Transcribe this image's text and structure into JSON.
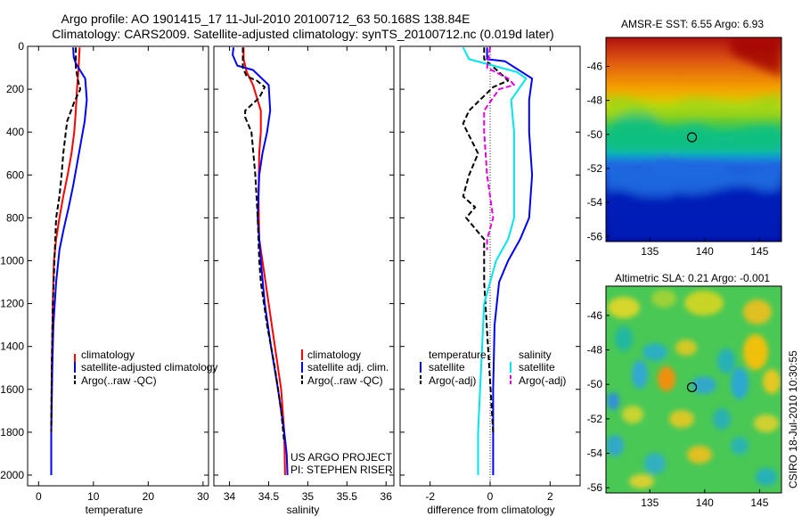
{
  "figure": {
    "title_line1": "Argo profile: AO 1901415_17 11-Jul-2010 20100712_63 50.168S 138.84E",
    "title_line2": "Climatology: CARS2009. Satellite-adjusted climatology: synTS_20100712.nc (0.019d later)",
    "project_line1": "US ARGO PROJECT",
    "project_line2": "PI: STEPHEN RISER",
    "footer": "CSIRO 18-Jul-2010 10:30:55"
  },
  "colors": {
    "climatology": "#ff0000",
    "satellite": "#0000ff",
    "argo": "#000000",
    "salinity_satellite": "#00e5ee",
    "salinity_argo": "#e000e0"
  },
  "chart_data": [
    {
      "type": "line",
      "id": "temperature",
      "xlabel": "temperature",
      "ylabel": "",
      "xlim": [
        -2,
        31
      ],
      "ylim": [
        2050,
        0
      ],
      "xticks": [
        0,
        10,
        20,
        30
      ],
      "yticks": [
        0,
        200,
        400,
        600,
        800,
        1000,
        1200,
        1400,
        1600,
        1800,
        2000
      ],
      "legend": [
        "climatology",
        "satellite-adjusted climatology",
        "Argo(..raw -QC)"
      ],
      "series": [
        {
          "name": "climatology",
          "color": "#ff0000",
          "dash": "",
          "x": [
            7.5,
            7.4,
            7.3,
            7.0,
            6.8,
            6.5,
            6.0,
            5.3,
            4.5,
            3.8,
            3.2,
            2.8,
            2.6,
            2.4,
            2.3,
            2.3
          ],
          "y": [
            5,
            50,
            100,
            200,
            300,
            400,
            500,
            600,
            700,
            800,
            900,
            1000,
            1200,
            1500,
            1800,
            2000
          ]
        },
        {
          "name": "satellite-adjusted climatology",
          "color": "#0000ff",
          "dash": "",
          "x": [
            6.3,
            6.4,
            6.8,
            8.5,
            8.8,
            8.4,
            7.7,
            7.0,
            6.3,
            5.5,
            4.6,
            3.8,
            3.2,
            2.7,
            2.5,
            2.3,
            2.3
          ],
          "y": [
            5,
            50,
            80,
            150,
            250,
            350,
            450,
            550,
            650,
            750,
            850,
            950,
            1100,
            1300,
            1500,
            1800,
            2000
          ]
        },
        {
          "name": "Argo(..raw -QC)",
          "color": "#000000",
          "dash": "6,3",
          "x": [
            6.8,
            6.8,
            7.2,
            7.6,
            6.5,
            5.2,
            4.5,
            4.2,
            3.8,
            3.2,
            2.9,
            2.6,
            2.4,
            2.3
          ],
          "y": [
            5,
            100,
            160,
            200,
            260,
            350,
            500,
            600,
            700,
            800,
            1000,
            1200,
            1500,
            1800
          ]
        }
      ]
    },
    {
      "type": "line",
      "id": "salinity",
      "xlabel": "salinity",
      "ylabel": "",
      "xlim": [
        33.8,
        36.1
      ],
      "ylim": [
        2050,
        0
      ],
      "xticks": [
        34,
        34.5,
        35,
        35.5,
        36
      ],
      "legend": [
        "climatology",
        "satellite adj. clim.",
        "Argo(..raw -QC)"
      ],
      "series": [
        {
          "name": "climatology",
          "color": "#ff0000",
          "dash": "",
          "x": [
            34.18,
            34.18,
            34.22,
            34.3,
            34.4,
            34.4,
            34.38,
            34.37,
            34.38,
            34.42,
            34.5,
            34.58,
            34.66,
            34.7,
            34.71
          ],
          "y": [
            5,
            60,
            120,
            180,
            300,
            400,
            500,
            700,
            900,
            1000,
            1200,
            1400,
            1600,
            1800,
            2000
          ]
        },
        {
          "name": "satellite adj. clim.",
          "color": "#0000ff",
          "dash": "",
          "x": [
            34.05,
            34.04,
            34.1,
            34.3,
            34.5,
            34.52,
            34.48,
            34.42,
            34.38,
            34.36,
            34.4,
            34.45,
            34.53,
            34.62,
            34.7,
            34.73,
            34.74
          ],
          "y": [
            5,
            40,
            90,
            110,
            180,
            300,
            400,
            500,
            600,
            800,
            1000,
            1200,
            1400,
            1600,
            1800,
            1900,
            2000
          ]
        },
        {
          "name": "Argo(..raw -QC)",
          "color": "#000000",
          "dash": "6,3",
          "x": [
            34.17,
            34.17,
            34.22,
            34.35,
            34.45,
            34.38,
            34.2,
            34.2,
            34.28,
            34.33,
            34.36,
            34.38,
            34.4,
            34.48,
            34.58,
            34.66,
            34.7
          ],
          "y": [
            5,
            100,
            140,
            160,
            190,
            240,
            300,
            330,
            400,
            600,
            800,
            1000,
            1100,
            1300,
            1500,
            1700,
            1850
          ]
        }
      ]
    },
    {
      "type": "line",
      "id": "difference",
      "xlabel": "difference from climatology",
      "ylabel": "",
      "xlim": [
        -3,
        3
      ],
      "ylim": [
        2050,
        0
      ],
      "xticks": [
        -2,
        0,
        2
      ],
      "legend_groups": [
        {
          "heading": "temperature",
          "entries": [
            "satellite",
            "Argo(-adj)"
          ]
        },
        {
          "heading": "salinity",
          "entries": [
            "satellite",
            "Argo(-adj)"
          ]
        }
      ],
      "series": [
        {
          "name": "temperature satellite",
          "color": "#0000ff",
          "dash": "",
          "x": [
            -0.1,
            -0.1,
            0.5,
            1.4,
            1.3,
            1.3,
            1.4,
            1.3,
            1.0,
            0.6,
            0.3,
            0.15,
            0.1,
            0.1,
            0.1
          ],
          "y": [
            5,
            60,
            70,
            150,
            250,
            400,
            600,
            800,
            900,
            1000,
            1100,
            1300,
            1600,
            1800,
            2000
          ]
        },
        {
          "name": "Argo(-adj)",
          "color": "#000000",
          "dash": "6,3",
          "x": [
            -0.2,
            -0.2,
            0.3,
            0.6,
            0.1,
            -0.7,
            -0.9,
            -0.4,
            -0.7,
            -0.9,
            -0.5,
            -0.8,
            -0.2,
            -0.2,
            0.1
          ],
          "y": [
            5,
            60,
            120,
            160,
            190,
            300,
            360,
            500,
            600,
            700,
            750,
            800,
            900,
            1100,
            1800
          ]
        },
        {
          "name": "salinity satellite",
          "color": "#00e5ee",
          "dash": "",
          "x": [
            -0.9,
            -0.7,
            0.1,
            0.9,
            1.2,
            0.7,
            0.8,
            0.8,
            0.8,
            0.6,
            0.2,
            -0.2,
            -0.3,
            -0.4,
            -0.4
          ],
          "y": [
            5,
            60,
            90,
            120,
            150,
            250,
            400,
            600,
            800,
            900,
            1000,
            1200,
            1500,
            1800,
            2000
          ]
        },
        {
          "name": "salinity Argo(-adj)",
          "color": "#e000e0",
          "dash": "6,3",
          "x": [
            0,
            -0.1,
            0.6,
            0.8,
            0.3,
            -0.2,
            -0.2,
            -0.1,
            0.0,
            0.1,
            -0.1,
            -0.1
          ],
          "y": [
            5,
            100,
            150,
            180,
            200,
            300,
            400,
            600,
            700,
            800,
            900,
            950
          ]
        }
      ]
    },
    {
      "type": "heatmap",
      "id": "amsr-sst",
      "title": "AMSR-E SST: 6.55 Argo: 6.93",
      "xlim": [
        131,
        147
      ],
      "ylim": [
        -56.3,
        -44.3
      ],
      "xticks": [
        135,
        140,
        145
      ],
      "yticks": [
        -46,
        -48,
        -50,
        -52,
        -54,
        -56
      ],
      "marker": {
        "x": 138.84,
        "y": -50.168
      }
    },
    {
      "type": "heatmap",
      "id": "altimetric-sla",
      "title": "Altimetric SLA: 0.21 Argo: -0.001",
      "xlim": [
        131,
        147
      ],
      "ylim": [
        -56.3,
        -44.3
      ],
      "xticks": [
        135,
        140,
        145
      ],
      "yticks": [
        -46,
        -48,
        -50,
        -52,
        -54,
        -56
      ],
      "marker": {
        "x": 138.84,
        "y": -50.168
      }
    }
  ]
}
